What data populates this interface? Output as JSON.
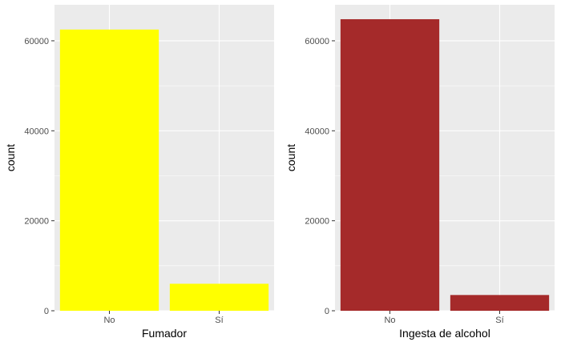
{
  "chart_data": [
    {
      "type": "bar",
      "categories": [
        "No",
        "Sí"
      ],
      "values": [
        62500,
        6000
      ],
      "xlabel": "Fumador",
      "ylabel": "count",
      "ylim": [
        0,
        68000
      ],
      "yticks": [
        0,
        20000,
        40000,
        60000
      ],
      "yminor": [
        10000,
        30000,
        50000
      ],
      "bar_color": "#ffff00",
      "grid": true,
      "legend": "none"
    },
    {
      "type": "bar",
      "categories": [
        "No",
        "Sí"
      ],
      "values": [
        64800,
        3500
      ],
      "xlabel": "Ingesta de alcohol",
      "ylabel": "count",
      "ylim": [
        0,
        68000
      ],
      "yticks": [
        0,
        20000,
        40000,
        60000
      ],
      "yminor": [
        10000,
        30000,
        50000
      ],
      "bar_color": "#a52a2a",
      "grid": true,
      "legend": "none"
    }
  ]
}
